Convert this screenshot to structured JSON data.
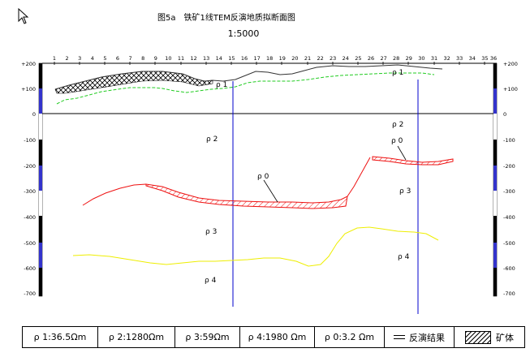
{
  "title": "图5a　铁矿1线TEM反演地质拟断面图",
  "scale": "1:5000",
  "station_numbers": [
    "1",
    "2",
    "3",
    "4",
    "5",
    "6",
    "7",
    "8",
    "9",
    "10",
    "11",
    "12",
    "13",
    "14",
    "15",
    "16",
    "17",
    "18",
    "19",
    "20",
    "21",
    "22",
    "23",
    "24",
    "25",
    "26",
    "27",
    "28",
    "29",
    "30",
    "31",
    "32",
    "33",
    "34",
    "35",
    "36"
  ],
  "depth_ticks": [
    "+200",
    "+100",
    "0",
    "-100",
    "-200",
    "-300",
    "-400",
    "-500",
    "-600",
    "-700"
  ],
  "layer_labels": {
    "rho1_a": "ρ 1",
    "rho1_b": "ρ 1",
    "rho2_a": "ρ 2",
    "rho2_b": "ρ 2",
    "rho0_a": "ρ 0",
    "rho0_b": "ρ 0",
    "rho3_a": "ρ 3",
    "rho3_b": "ρ 3",
    "rho4_a": "ρ 4",
    "rho4_b": "ρ 4"
  },
  "legend": {
    "rho1": "ρ 1:36.5Ωm",
    "rho2": "ρ 2:1280Ωm",
    "rho3": "ρ 3:59Ωm",
    "rho4": "ρ 4:1980 Ωm",
    "rho0": "ρ 0:3.2 Ωm",
    "inversion": "反演结果",
    "orebody": "矿体"
  },
  "colors": {
    "topography": "#000000",
    "green_boundary": "#22cc22",
    "red_boundary": "#ee1111",
    "yellow_boundary": "#eeee00",
    "borehole": "#0000cc"
  }
}
